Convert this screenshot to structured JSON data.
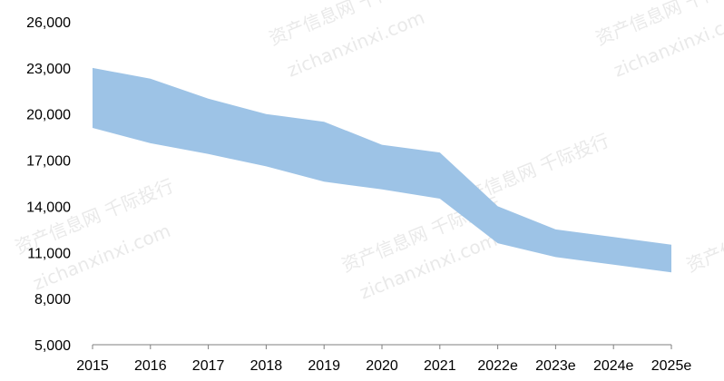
{
  "chart_data": {
    "type": "area",
    "title": "",
    "xlabel": "",
    "ylabel": "",
    "categories": [
      "2015",
      "2016",
      "2017",
      "2018",
      "2019",
      "2020",
      "2021",
      "2022e",
      "2023e",
      "2024e",
      "2025e"
    ],
    "series": [
      {
        "role": "upper",
        "values": [
          23000,
          22300,
          21000,
          20000,
          19500,
          18000,
          17500,
          14000,
          12500,
          12000,
          11500
        ]
      },
      {
        "role": "lower",
        "values": [
          19100,
          18100,
          17400,
          16600,
          15600,
          15100,
          14500,
          11600,
          10700,
          10200,
          9700
        ]
      }
    ],
    "ylim": [
      5000,
      26000
    ],
    "yticks": [
      5000,
      8000,
      11000,
      14000,
      17000,
      20000,
      23000,
      26000
    ],
    "ytick_labels": [
      "5,000",
      "8,000",
      "11,000",
      "14,000",
      "17,000",
      "20,000",
      "23,000",
      "26,000"
    ],
    "band_color": "#9dc3e6",
    "axis_color": "#7f7f7f",
    "grid": false,
    "legend": "none"
  },
  "watermarks": [
    "资产信息网 千际投行",
    "zichanxinxi.com"
  ]
}
